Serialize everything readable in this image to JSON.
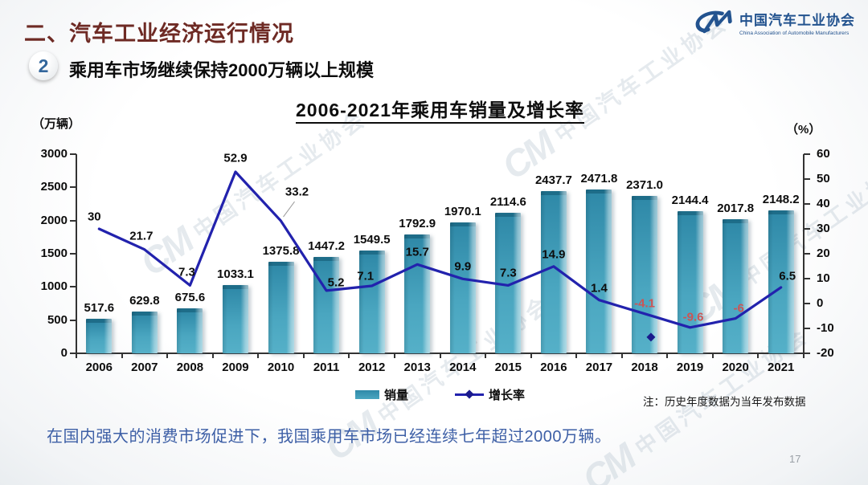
{
  "header": {
    "section_title": "二、汽车工业经济运行情况",
    "logo": {
      "monogram": "CM",
      "name_cn": "中国汽车工业协会",
      "name_en": "China Association of Automobile Manufacturers"
    }
  },
  "point": {
    "number": "2",
    "text": "乘用车市场继续保持2000万辆以上规模"
  },
  "chart_data": {
    "type": "combo",
    "title": "2006-2021年乘用车销量及增长率",
    "categories": [
      "2006",
      "2007",
      "2008",
      "2009",
      "2010",
      "2011",
      "2012",
      "2013",
      "2014",
      "2015",
      "2016",
      "2017",
      "2018",
      "2019",
      "2020",
      "2021"
    ],
    "series": [
      {
        "name": "销量",
        "type": "bar",
        "axis": "left",
        "unit": "万辆",
        "values": [
          517.6,
          629.8,
          675.6,
          1033.1,
          1375.8,
          1447.2,
          1549.5,
          1792.9,
          1970.1,
          2114.6,
          2437.7,
          2471.8,
          2371.0,
          2144.4,
          2017.8,
          2148.2
        ],
        "labels": [
          "517.6",
          "629.8",
          "675.6",
          "1033.1",
          "1375.8",
          "1447.2",
          "1549.5",
          "1792.9",
          "1970.1",
          "2114.6",
          "2437.7",
          "2471.8",
          "2371.0",
          "2144.4",
          "2017.8",
          "2148.2"
        ]
      },
      {
        "name": "增长率",
        "type": "line",
        "axis": "right",
        "unit": "%",
        "values": [
          30,
          21.7,
          7.3,
          52.9,
          33.2,
          5.2,
          7.1,
          15.7,
          9.9,
          7.3,
          14.9,
          1.4,
          -4.1,
          -9.6,
          -6,
          6.5
        ],
        "labels": [
          "30",
          "21.7",
          "7.3",
          "52.9",
          "33.2",
          "5.2",
          "7.1",
          "15.7",
          "9.9",
          "7.3",
          "14.9",
          "1.4",
          "-4.1",
          "-9.6",
          "-6",
          "6.5"
        ]
      }
    ],
    "left_axis": {
      "unit_label": "（万辆）",
      "min": 0,
      "max": 3000,
      "step": 500
    },
    "right_axis": {
      "unit_label": "（%）",
      "min": -20,
      "max": 60,
      "step": 10
    },
    "legend": [
      "销量",
      "增长率"
    ],
    "note": "注：历史年度数据为当年发布数据",
    "stray_marker": {
      "description": "isolated diamond marker between 2018 and 2019",
      "x_fraction": 0.79,
      "value": -13.5
    },
    "layout_hints": {
      "grid": false,
      "legend_position": "bottom-center",
      "default_label_offset": [
        0,
        -15
      ],
      "label_offsets": {
        "0": [
          -6,
          -15
        ],
        "1": [
          -4,
          -17
        ],
        "2": [
          -4,
          -16
        ],
        "3": [
          0,
          -17
        ],
        "4": [
          20,
          -36
        ],
        "5": [
          12,
          -10
        ],
        "6": [
          -8,
          -12
        ],
        "12": [
          0,
          -13
        ],
        "13": [
          4,
          -13
        ],
        "14": [
          4,
          -13
        ],
        "15": [
          8,
          -14
        ]
      },
      "leader_line_index": 4,
      "negative_label_indices": [
        12,
        13,
        14
      ]
    }
  },
  "footer": {
    "summary": "在国内强大的消费市场促进下，我国乘用车市场已经连续七年超过2000万辆。",
    "page_number": "17"
  },
  "colors": {
    "bar": "#3695b2",
    "bar_cap": "#1e6d89",
    "line": "#2222ad",
    "line_marker": "#1a1a8c",
    "negative_label": "#cc5555",
    "heading": "#6e2a24",
    "summary_text": "#3d5fa6",
    "logo_blue": "#23538f",
    "page_number": "#9aa0a6"
  },
  "watermark": {
    "text": "中国汽车工业协会",
    "monogram": "CM"
  }
}
